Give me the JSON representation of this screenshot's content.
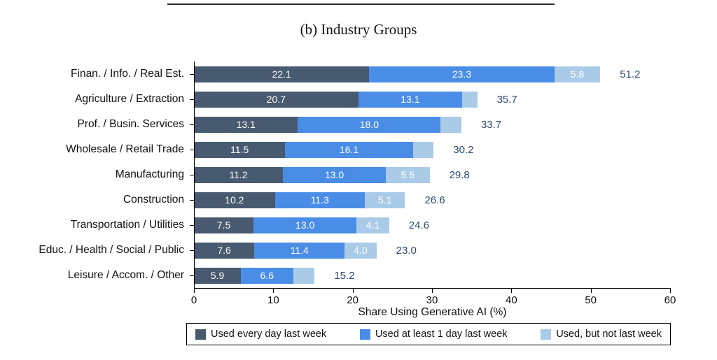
{
  "chart_data": {
    "type": "bar",
    "orientation": "horizontal",
    "stacked": true,
    "title": "(b) Industry Groups",
    "xlabel": "Share Using Generative AI (%)",
    "xlim": [
      0,
      60
    ],
    "x_ticks": [
      0,
      10,
      20,
      30,
      40,
      50,
      60
    ],
    "grid": false,
    "legend_position": "bottom",
    "categories": [
      "Finan. / Info. / Real Est.",
      "Agriculture / Extraction",
      "Prof. / Busin. Services",
      "Wholesale / Retail Trade",
      "Manufacturing",
      "Construction",
      "Transportation / Utilities",
      "Educ. / Health / Social / Public",
      "Leisure / Accom. / Other"
    ],
    "series": [
      {
        "name": "Used every day last week",
        "color": "#485a6f",
        "values": [
          22.1,
          20.7,
          13.1,
          11.5,
          11.2,
          10.2,
          7.5,
          7.6,
          5.9
        ],
        "value_labels": [
          "22.1",
          "20.7",
          "13.1",
          "11.5",
          "11.2",
          "10.2",
          "7.5",
          "7.6",
          "5.9"
        ]
      },
      {
        "name": "Used at least 1 day last week",
        "color": "#4a8de6",
        "values": [
          23.3,
          13.1,
          18.0,
          16.1,
          13.0,
          11.3,
          13.0,
          11.4,
          6.6
        ],
        "value_labels": [
          "23.3",
          "13.1",
          "18.0",
          "16.1",
          "13.0",
          "11.3",
          "13.0",
          "11.4",
          "6.6"
        ]
      },
      {
        "name": "Used, but not last week",
        "color": "#a9cbe8",
        "values": [
          5.8,
          1.9,
          2.6,
          2.6,
          5.5,
          5.1,
          4.1,
          4.0,
          2.7
        ],
        "value_labels": [
          "5.8",
          "",
          "",
          "",
          "5.5",
          "5.1",
          "4.1",
          "4.0",
          ""
        ]
      }
    ],
    "totals": [
      51.2,
      35.7,
      33.7,
      30.2,
      29.8,
      26.6,
      24.6,
      23.0,
      15.2
    ],
    "total_label_color": "#2b4a6f"
  }
}
